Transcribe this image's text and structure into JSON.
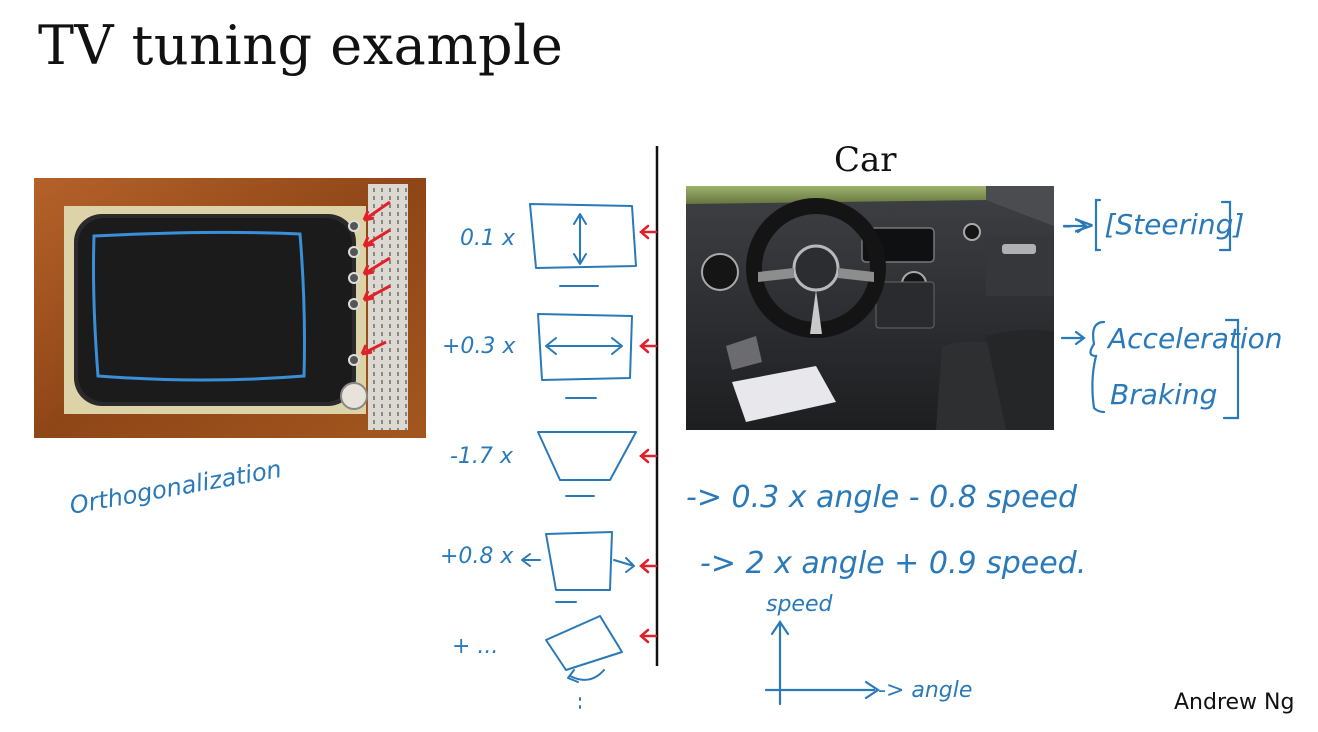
{
  "slide": {
    "title": "TV tuning example",
    "author": "Andrew Ng"
  },
  "tv": {
    "annotation": "Orthogonalization"
  },
  "knobs": [
    {
      "coef": "0.1 x"
    },
    {
      "coef": "+0.3 x"
    },
    {
      "coef": "-1.7 x"
    },
    {
      "coef": "+0.8 x"
    },
    {
      "coef": "+ ..."
    }
  ],
  "car": {
    "label": "Car",
    "controls": [
      "-> [Steering]",
      "Acceleration",
      "Braking"
    ],
    "equations": [
      "-> 0.3 x angle  -  0.8 speed",
      "-> 2 x angle  +  0.9 speed."
    ],
    "axes": {
      "y": "speed",
      "x": "-> angle"
    }
  },
  "colors": {
    "ink_blue": "#2a79b8",
    "arrow_red": "#e0202a",
    "wood": "#a0521d"
  }
}
